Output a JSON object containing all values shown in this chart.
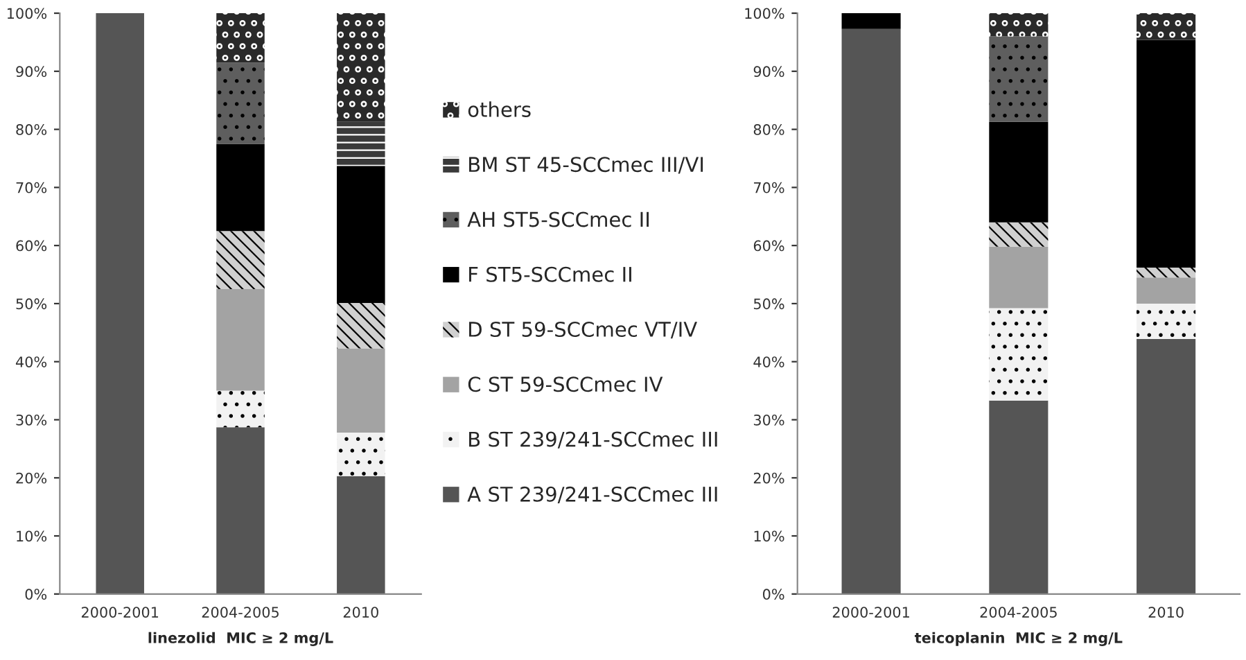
{
  "chart_data": [
    {
      "type": "bar",
      "stacked": true,
      "xlabel": "linezolid  MIC ≥ 2 mg/L",
      "categories": [
        "2000-2001",
        "2004-2005",
        "2010"
      ],
      "ylim": [
        0,
        100
      ],
      "yticks": [
        {
          "value": 0,
          "label": "0%"
        },
        {
          "value": 10,
          "label": "10%"
        },
        {
          "value": 20,
          "label": "20%"
        },
        {
          "value": 30,
          "label": "30%"
        },
        {
          "value": 40,
          "label": "40%"
        },
        {
          "value": 50,
          "label": "50%"
        },
        {
          "value": 60,
          "label": "60%"
        },
        {
          "value": 70,
          "label": "70%"
        },
        {
          "value": 80,
          "label": "80%"
        },
        {
          "value": 90,
          "label": "90%"
        },
        {
          "value": 100,
          "label": "100%"
        }
      ],
      "legend": "right",
      "grid": false,
      "series": [
        {
          "name": "A ST 239/241-SCCmec III",
          "color": "#555555",
          "values": [
            100,
            28.7,
            20.3
          ]
        },
        {
          "name": "B ST 239/241-SCCmec III",
          "color": "#f2f2f2",
          "values": [
            0,
            6.3,
            7.5
          ]
        },
        {
          "name": "C ST 59-SCCmec IV",
          "color": "#a3a3a3",
          "values": [
            0,
            17.5,
            14.5
          ]
        },
        {
          "name": "D ST 59-SCCmec VT/IV",
          "color": "#d0d0d0",
          "values": [
            0,
            10,
            7.8
          ]
        },
        {
          "name": "F ST5-SCCmec II",
          "color": "#000000",
          "values": [
            0,
            15,
            23.6
          ]
        },
        {
          "name": "AH ST5-SCCmec II",
          "color": "#5e5e5e",
          "values": [
            0,
            14,
            0
          ]
        },
        {
          "name": "BM ST 45-SCCmec III/VI",
          "color": "#3a3a3a",
          "values": [
            0,
            0,
            7.6
          ]
        },
        {
          "name": "others",
          "color": "#2a2a2a",
          "values": [
            0,
            8.5,
            18.7
          ]
        }
      ]
    },
    {
      "type": "bar",
      "stacked": true,
      "xlabel": "teicoplanin  MIC ≥ 2 mg/L",
      "categories": [
        "2000-2001",
        "2004-2005",
        "2010"
      ],
      "ylim": [
        0,
        100
      ],
      "yticks": [
        {
          "value": 0,
          "label": "0%"
        },
        {
          "value": 10,
          "label": "10%"
        },
        {
          "value": 20,
          "label": "20%"
        },
        {
          "value": 30,
          "label": "30%"
        },
        {
          "value": 40,
          "label": "40%"
        },
        {
          "value": 50,
          "label": "50%"
        },
        {
          "value": 60,
          "label": "60%"
        },
        {
          "value": 70,
          "label": "70%"
        },
        {
          "value": 80,
          "label": "80%"
        },
        {
          "value": 90,
          "label": "90%"
        },
        {
          "value": 100,
          "label": "100%"
        }
      ],
      "grid": false,
      "series": [
        {
          "color": "#555555",
          "values": [
            97.3,
            33.3,
            43.9
          ]
        },
        {
          "color": "#f2f2f2",
          "values": [
            0,
            15.9,
            6.1
          ]
        },
        {
          "color": "#a3a3a3",
          "values": [
            0,
            10.6,
            4.5
          ]
        },
        {
          "color": "#d0d0d0",
          "values": [
            0,
            4.2,
            1.7
          ]
        },
        {
          "color": "#000000",
          "values": [
            2.7,
            17.3,
            39.2
          ]
        },
        {
          "color": "#5e5e5e",
          "values": [
            0,
            14.7,
            0
          ]
        },
        {
          "color": "#3a3a3a",
          "values": [
            0,
            0,
            0
          ]
        },
        {
          "color": "#2a2a2a",
          "values": [
            0,
            4,
            4.6
          ]
        }
      ]
    }
  ]
}
